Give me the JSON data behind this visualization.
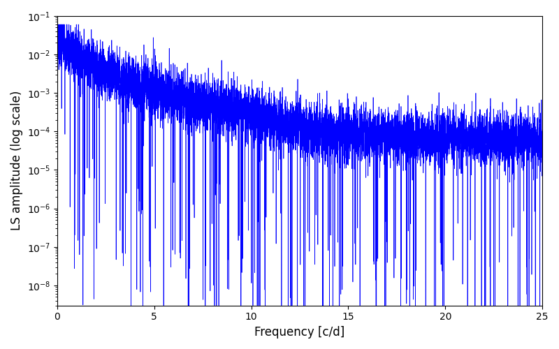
{
  "title": "",
  "xlabel": "Frequency [c/d]",
  "ylabel": "LS amplitude (log scale)",
  "line_color": "#0000ff",
  "line_width": 0.5,
  "xlim": [
    0,
    25
  ],
  "ylim_log": [
    3e-09,
    0.1
  ],
  "xfreq_max": 25.0,
  "n_points": 8000,
  "background_color": "#ffffff",
  "figsize": [
    8.0,
    5.0
  ],
  "dpi": 100
}
